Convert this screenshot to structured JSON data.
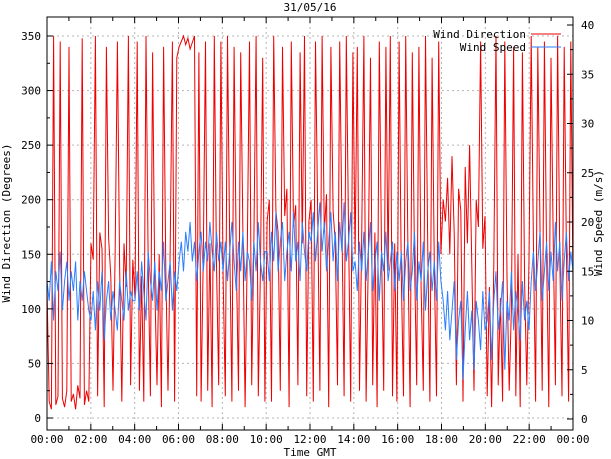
{
  "title": "31/05/16",
  "axes_labels": {
    "x": "Time GMT",
    "y_left": "Wind Direction (Degrees)",
    "y_right": "Wind Speed (m/s)"
  },
  "colors": {
    "direction": "#ee0000",
    "speed": "#2a7fff",
    "grid": "#b4b4b4",
    "border": "#000000",
    "background": "#ffffff"
  },
  "chart_data": {
    "type": "line",
    "title": "31/05/16",
    "xlabel": "Time GMT",
    "ylabel": "Wind Direction (Degrees)",
    "y2label": "Wind Speed (m/s)",
    "grid": true,
    "legend_position": "top-right",
    "x_tick_labels": [
      "00:00",
      "02:00",
      "04:00",
      "06:00",
      "08:00",
      "10:00",
      "12:00",
      "14:00",
      "16:00",
      "18:00",
      "20:00",
      "22:00",
      "00:00"
    ],
    "x_minor_ticks_per_major": 2,
    "y_left_ticks": [
      0,
      50,
      100,
      150,
      200,
      250,
      300,
      350
    ],
    "y_right_ticks": [
      0,
      5,
      10,
      15,
      20,
      25,
      30,
      35,
      40
    ],
    "ylim_left": [
      0,
      370
    ],
    "ylim_right": [
      0,
      41
    ],
    "time_start": "00:00",
    "time_end": "24:00",
    "sample_interval_minutes": 6,
    "series": [
      {
        "name": "Wind Direction",
        "axis": "left",
        "color": "#ee0000",
        "values": [
          120,
          15,
          8,
          350,
          12,
          20,
          345,
          18,
          10,
          25,
          340,
          15,
          22,
          8,
          30,
          18,
          348,
          12,
          25,
          15,
          160,
          145,
          350,
          20,
          170,
          155,
          10,
          340,
          165,
          130,
          25,
          155,
          345,
          140,
          15,
          160,
          120,
          350,
          30,
          145,
          110,
          345,
          25,
          130,
          15,
          350,
          140,
          20,
          335,
          120,
          30,
          150,
          10,
          340,
          135,
          25,
          155,
          345,
          15,
          330,
          340,
          345,
          350,
          342,
          348,
          338,
          344,
          350,
          20,
          335,
          15,
          150,
          345,
          25,
          160,
          10,
          350,
          140,
          30,
          345,
          130,
          20,
          350,
          160,
          15,
          340,
          145,
          25,
          335,
          170,
          10,
          155,
          345,
          30,
          165,
          350,
          20,
          140,
          330,
          15,
          180,
          200,
          15,
          350,
          190,
          170,
          25,
          340,
          185,
          210,
          10,
          345,
          175,
          195,
          30,
          335,
          160,
          350,
          20,
          180,
          200,
          15,
          345,
          185,
          25,
          350,
          170,
          205,
          10,
          340,
          190,
          160,
          30,
          345,
          180,
          20,
          350,
          175,
          15,
          335,
          150,
          340,
          25,
          165,
          350,
          15,
          145,
          330,
          30,
          170,
          10,
          345,
          155,
          25,
          340,
          135,
          350,
          20,
          160,
          15,
          345,
          130,
          20,
          350,
          155,
          10,
          335,
          145,
          30,
          340,
          120,
          25,
          350,
          160,
          15,
          330,
          140,
          20,
          345,
          150,
          200,
          180,
          220,
          150,
          240,
          170,
          30,
          210,
          190,
          15,
          230,
          160,
          250,
          140,
          25,
          200,
          175,
          345,
          155,
          185,
          20,
          120,
          10,
          140,
          350,
          30,
          110,
          15,
          345,
          130,
          25,
          100,
          340,
          20,
          150,
          10,
          335,
          125,
          30,
          145,
          350,
          160,
          15,
          340,
          175,
          25,
          345,
          150,
          10,
          330,
          165,
          30,
          350,
          145,
          20,
          340,
          155,
          15,
          345,
          120
        ]
      },
      {
        "name": "Wind Speed",
        "axis": "right",
        "color": "#2a7fff",
        "values": [
          14,
          12,
          16,
          10,
          15,
          13,
          17,
          11,
          14,
          16,
          12,
          15,
          13,
          16,
          10,
          14,
          12,
          15,
          13,
          11,
          10,
          13,
          9,
          14,
          11,
          15,
          8,
          12,
          14,
          10,
          13,
          11,
          9,
          14,
          12,
          10,
          15,
          11,
          13,
          12,
          12,
          15,
          11,
          16,
          13,
          10,
          17,
          14,
          12,
          16,
          11,
          15,
          13,
          18,
          12,
          14,
          16,
          11,
          15,
          13,
          16,
          18,
          15,
          19,
          17,
          20,
          16,
          18,
          14,
          17,
          19,
          15,
          18,
          16,
          20,
          17,
          15,
          19,
          16,
          18,
          15,
          18,
          14,
          17,
          20,
          16,
          13,
          18,
          15,
          19,
          14,
          17,
          16,
          12,
          18,
          15,
          20,
          16,
          14,
          17,
          17,
          14,
          19,
          16,
          21,
          15,
          18,
          20,
          14,
          17,
          19,
          15,
          21,
          16,
          18,
          14,
          20,
          17,
          15,
          19,
          18,
          21,
          16,
          19,
          22,
          17,
          20,
          15,
          18,
          21,
          16,
          19,
          14,
          20,
          17,
          22,
          16,
          18,
          21,
          15,
          16,
          13,
          18,
          15,
          19,
          14,
          17,
          20,
          13,
          16,
          18,
          12,
          17,
          15,
          19,
          14,
          16,
          18,
          13,
          17,
          14,
          17,
          12,
          16,
          18,
          13,
          15,
          19,
          12,
          16,
          14,
          18,
          11,
          15,
          17,
          13,
          16,
          12,
          18,
          14,
          12,
          9,
          13,
          8,
          11,
          14,
          6,
          10,
          12,
          4,
          9,
          13,
          8,
          11,
          5,
          12,
          10,
          7,
          13,
          9,
          10,
          13,
          6,
          12,
          15,
          9,
          11,
          14,
          5,
          12,
          10,
          15,
          9,
          13,
          11,
          8,
          14,
          10,
          12,
          9,
          14,
          17,
          13,
          16,
          19,
          12,
          15,
          18,
          13,
          17,
          14,
          20,
          15,
          18,
          12,
          16,
          19,
          14,
          17,
          15
        ]
      }
    ]
  }
}
